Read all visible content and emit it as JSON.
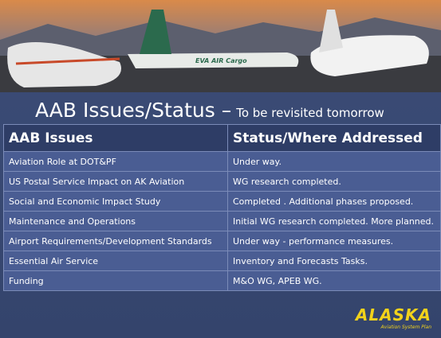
{
  "photo": {
    "labels": [
      "EVA AIR Cargo"
    ]
  },
  "header": {
    "title": "AAB Issues/Status –",
    "subtitle": "To be revisited tomorrow"
  },
  "table": {
    "columns": [
      "AAB Issues",
      "Status/Where Addressed"
    ],
    "rows": [
      [
        "Aviation Role at DOT&PF",
        "Under way."
      ],
      [
        "US Postal Service Impact on AK Aviation",
        "WG research completed."
      ],
      [
        "Social and Economic Impact Study",
        "Completed .  Additional phases proposed."
      ],
      [
        "Maintenance and Operations",
        "Initial WG research completed.  More planned."
      ],
      [
        "Airport Requirements/Development Standards",
        "Under way - performance measures."
      ],
      [
        "Essential Air Service",
        "Inventory and Forecasts Tasks."
      ],
      [
        "Funding",
        "M&O WG,  APEB WG."
      ]
    ]
  },
  "logo": {
    "name": "ALASKA",
    "tagline": "Aviation System Plan"
  }
}
